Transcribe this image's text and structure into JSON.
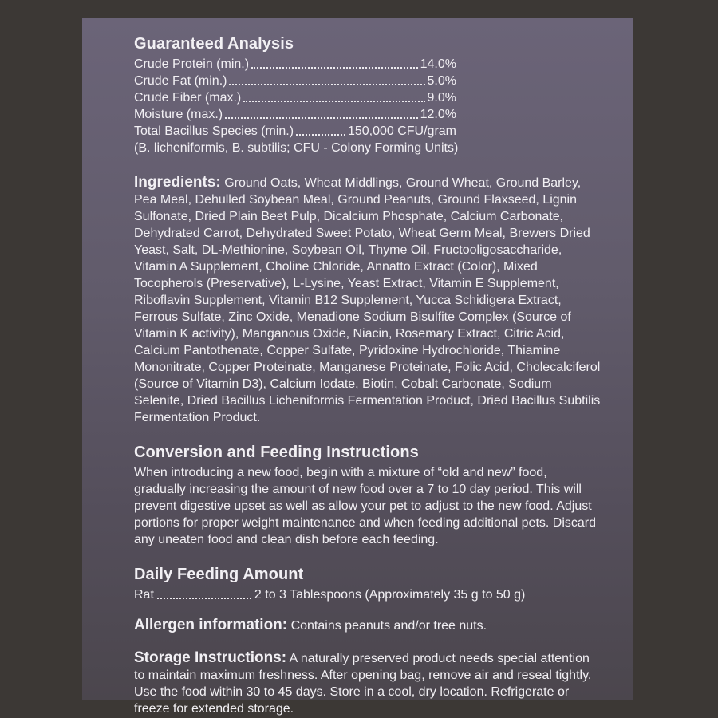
{
  "colors": {
    "page_background": "#3c3835",
    "panel_gradient_top": "#6b6478",
    "panel_gradient_bottom": "#4b464d",
    "text": "#f2f0f4"
  },
  "guaranteed_analysis": {
    "title": "Guaranteed Analysis",
    "rows": [
      {
        "label": "Crude Protein (min.)",
        "value": "14.0%"
      },
      {
        "label": "Crude Fat (min.)",
        "value": "5.0%"
      },
      {
        "label": "Crude Fiber (max.)",
        "value": "9.0%"
      },
      {
        "label": "Moisture (max.)",
        "value": "12.0%"
      },
      {
        "label": "Total Bacillus Species (min.)",
        "value": "150,000 CFU/gram"
      }
    ],
    "footnote": "(B. licheniformis, B. subtilis; CFU - Colony Forming Units)"
  },
  "ingredients": {
    "title": "Ingredients:",
    "text": "Ground Oats, Wheat Middlings, Ground Wheat, Ground Barley, Pea Meal, Dehulled Soybean Meal, Ground Peanuts, Ground Flaxseed, Lignin Sulfonate, Dried Plain Beet Pulp, Dicalcium Phosphate, Calcium Carbonate, Dehydrated Carrot, Dehydrated Sweet Potato, Wheat Germ Meal, Brewers Dried Yeast, Salt, DL-Methionine, Soybean Oil, Thyme Oil, Fructooligosaccharide, Vitamin A Supplement, Choline Chloride, Annatto Extract (Color), Mixed Tocopherols (Preservative), L-Lysine, Yeast Extract, Vitamin E Supplement, Riboflavin Supplement, Vitamin B12 Supplement, Yucca Schidigera Extract, Ferrous Sulfate, Zinc Oxide, Menadione Sodium Bisulfite Complex (Source of Vitamin K activity), Manganous Oxide, Niacin, Rosemary Extract, Citric Acid, Calcium Pantothenate, Copper Sulfate, Pyridoxine Hydrochloride, Thiamine Mononitrate, Copper Proteinate, Manganese Proteinate, Folic Acid, Cholecalciferol (Source of Vitamin D3), Calcium Iodate, Biotin, Cobalt Carbonate, Sodium Selenite, Dried Bacillus Licheniformis Fermentation Product, Dried Bacillus Subtilis Fermentation Product."
  },
  "conversion": {
    "title": "Conversion and Feeding Instructions",
    "text": "When introducing a new food, begin with a mixture of “old and new” food, gradually increasing the amount of new food over a 7 to 10 day period. This will prevent digestive upset as well as allow your pet to adjust to the new food. Adjust portions for proper weight maintenance and when feeding additional pets. Discard any uneaten food and clean dish before each feeding."
  },
  "daily_feeding": {
    "title": "Daily Feeding Amount",
    "row": {
      "label": "Rat",
      "value": "2 to 3 Tablespoons (Approximately 35 g to 50 g)"
    }
  },
  "allergen": {
    "title": "Allergen information:",
    "text": "Contains peanuts and/or tree nuts."
  },
  "storage": {
    "title": "Storage Instructions:",
    "text": "A naturally preserved product needs special attention to maintain maximum freshness. After opening bag, remove air and reseal tightly. Use the food within 30 to 45 days. Store in a cool, dry location. Refrigerate or freeze for extended storage."
  }
}
